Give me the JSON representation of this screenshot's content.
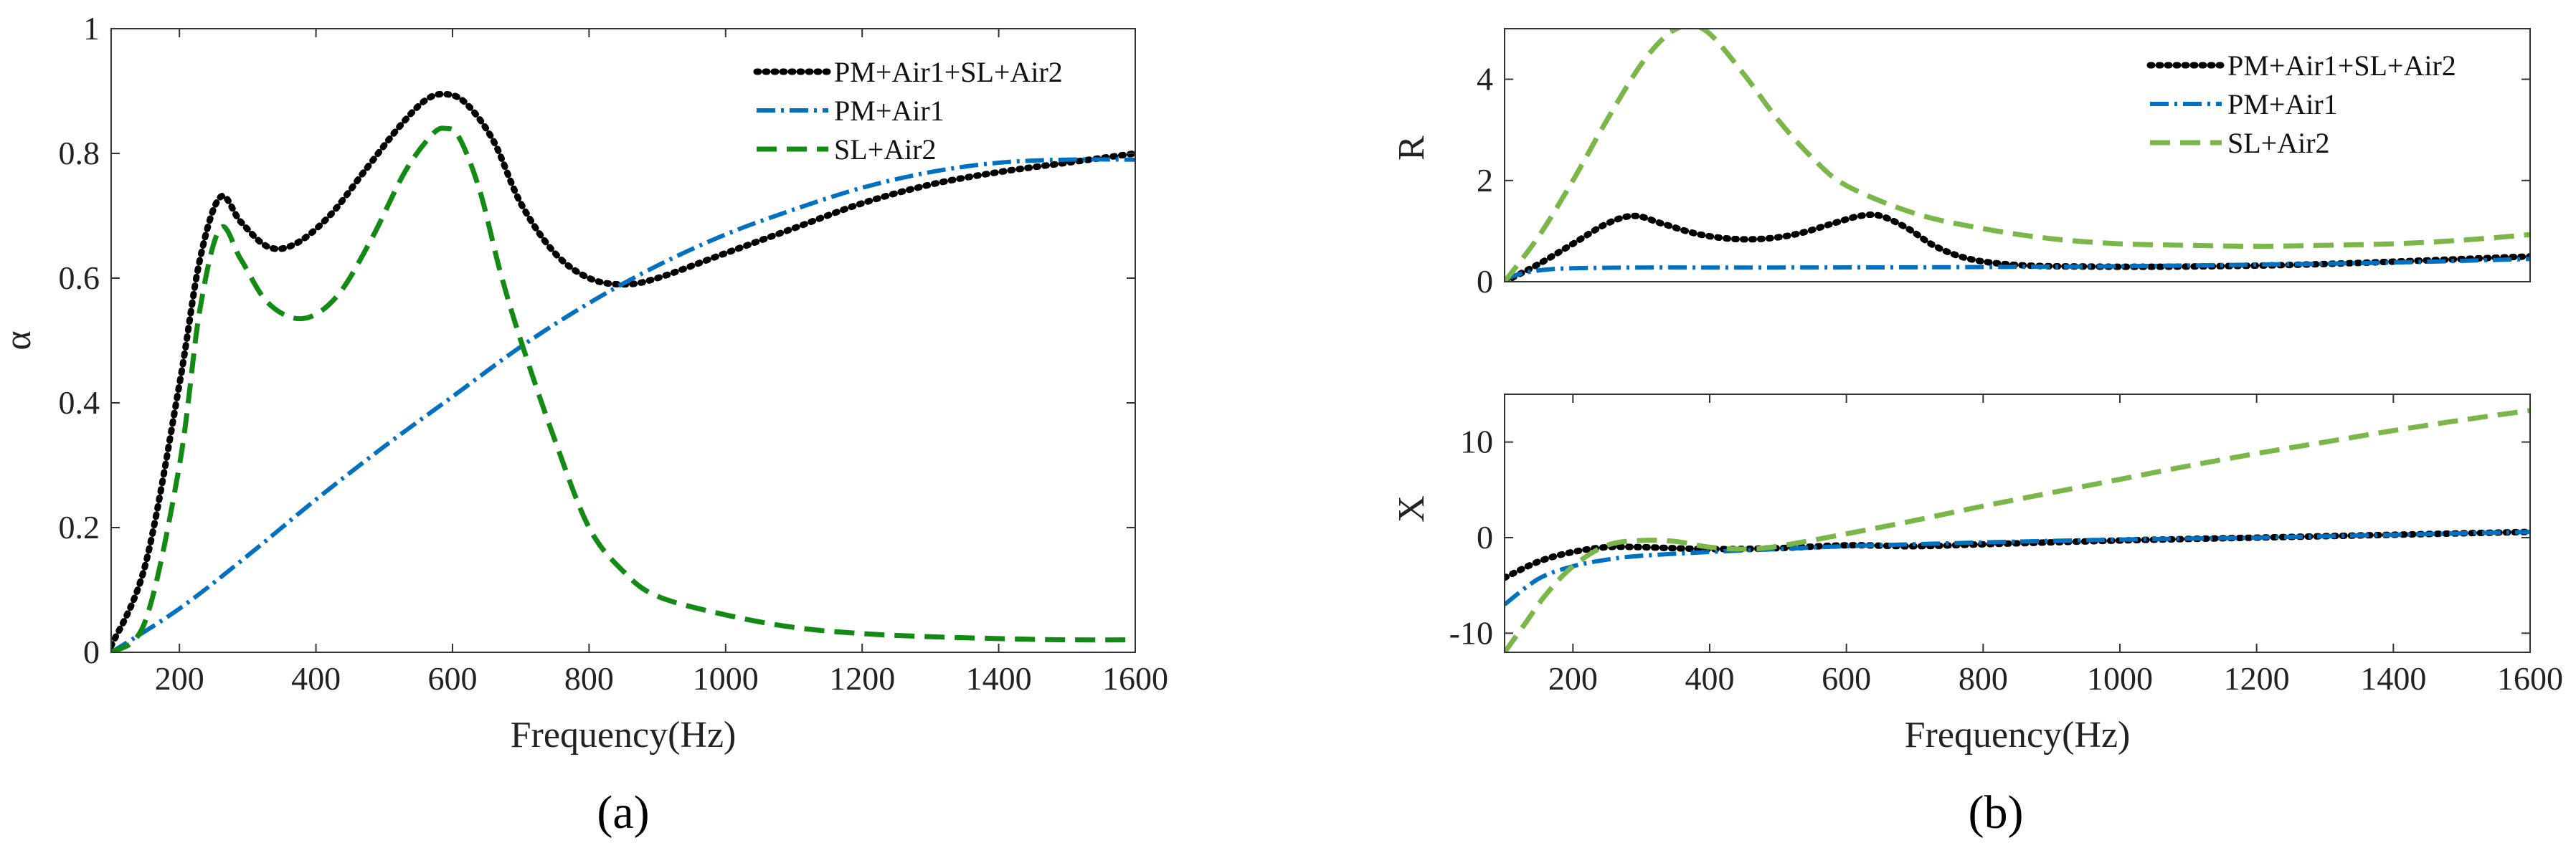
{
  "chart_data": [
    {
      "id": "a",
      "type": "line",
      "panel_label": "(a)",
      "xlabel": "Frequency(Hz)",
      "ylabel": "α",
      "xlim": [
        100,
        1600
      ],
      "ylim": [
        0,
        1
      ],
      "xticks": [
        200,
        400,
        600,
        800,
        1000,
        1200,
        1400,
        1600
      ],
      "yticks": [
        0,
        0.2,
        0.4,
        0.6,
        0.8,
        1
      ],
      "ytick_labels": [
        "0",
        "0.2",
        "0.4",
        "0.6",
        "0.8",
        "1"
      ],
      "legend_position": "top-right",
      "series": [
        {
          "name": "PM+Air1+SL+Air2",
          "color": "#000000",
          "style": "dotted",
          "x": [
            100,
            150,
            200,
            230,
            260,
            290,
            330,
            370,
            420,
            470,
            520,
            560,
            590,
            620,
            660,
            700,
            750,
            800,
            850,
            900,
            1000,
            1100,
            1200,
            1300,
            1400,
            1500,
            1600
          ],
          "y": [
            0.01,
            0.14,
            0.43,
            0.63,
            0.73,
            0.69,
            0.65,
            0.655,
            0.7,
            0.77,
            0.84,
            0.885,
            0.895,
            0.88,
            0.82,
            0.72,
            0.64,
            0.6,
            0.59,
            0.6,
            0.64,
            0.68,
            0.72,
            0.75,
            0.77,
            0.785,
            0.8
          ]
        },
        {
          "name": "PM+Air1",
          "color": "#0070C0",
          "style": "dashdot",
          "x": [
            100,
            200,
            300,
            400,
            500,
            600,
            700,
            800,
            900,
            1000,
            1100,
            1200,
            1300,
            1400,
            1500,
            1600
          ],
          "y": [
            0,
            0.07,
            0.155,
            0.245,
            0.33,
            0.41,
            0.49,
            0.56,
            0.62,
            0.67,
            0.71,
            0.745,
            0.77,
            0.785,
            0.79,
            0.79
          ]
        },
        {
          "name": "SL+Air2",
          "color": "#138A13",
          "style": "dashed",
          "x": [
            100,
            150,
            200,
            230,
            260,
            290,
            330,
            380,
            430,
            480,
            530,
            570,
            590,
            610,
            640,
            670,
            700,
            750,
            800,
            850,
            900,
            1000,
            1100,
            1200,
            1300,
            1400,
            1500,
            1600
          ],
          "y": [
            0,
            0.05,
            0.3,
            0.55,
            0.68,
            0.63,
            0.56,
            0.535,
            0.57,
            0.66,
            0.77,
            0.83,
            0.84,
            0.825,
            0.74,
            0.61,
            0.5,
            0.34,
            0.2,
            0.13,
            0.09,
            0.06,
            0.04,
            0.03,
            0.025,
            0.022,
            0.02,
            0.02
          ]
        }
      ]
    },
    {
      "id": "b_top",
      "type": "line",
      "panel_label": "(b)",
      "xlabel": "",
      "ylabel": "R",
      "xlim": [
        100,
        1600
      ],
      "ylim": [
        0,
        5
      ],
      "xticks": [],
      "yticks": [
        0,
        2,
        4
      ],
      "ytick_labels": [
        "0",
        "2",
        "4"
      ],
      "legend_position": "top-right",
      "series": [
        {
          "name": "PM+Air1+SL+Air2",
          "color": "#000000",
          "style": "dotted",
          "x": [
            100,
            150,
            200,
            250,
            290,
            330,
            380,
            430,
            480,
            530,
            580,
            620,
            650,
            690,
            730,
            780,
            850,
            950,
            1100,
            1300,
            1600
          ],
          "y": [
            0,
            0.35,
            0.75,
            1.15,
            1.3,
            1.15,
            0.95,
            0.85,
            0.85,
            0.95,
            1.15,
            1.3,
            1.3,
            1.05,
            0.7,
            0.45,
            0.33,
            0.3,
            0.3,
            0.35,
            0.5
          ]
        },
        {
          "name": "PM+Air1",
          "color": "#0070C0",
          "style": "dashdot",
          "x": [
            100,
            130,
            170,
            220,
            300,
            500,
            800,
            1100,
            1400,
            1600
          ],
          "y": [
            0.05,
            0.18,
            0.25,
            0.27,
            0.28,
            0.28,
            0.29,
            0.32,
            0.38,
            0.45
          ]
        },
        {
          "name": "SL+Air2",
          "color": "#7AB648",
          "style": "dashed",
          "x": [
            100,
            150,
            200,
            250,
            300,
            340,
            370,
            400,
            450,
            500,
            550,
            600,
            700,
            800,
            900,
            1000,
            1100,
            1200,
            1300,
            1400,
            1500,
            1600
          ],
          "y": [
            0,
            0.9,
            2.0,
            3.2,
            4.3,
            4.9,
            5.05,
            4.9,
            4.1,
            3.2,
            2.45,
            1.9,
            1.35,
            1.05,
            0.85,
            0.75,
            0.72,
            0.7,
            0.72,
            0.75,
            0.82,
            0.93
          ]
        }
      ]
    },
    {
      "id": "b_bottom",
      "type": "line",
      "xlabel": "Frequency(Hz)",
      "ylabel": "X",
      "xlim": [
        100,
        1600
      ],
      "ylim": [
        -12,
        15
      ],
      "xticks": [
        200,
        400,
        600,
        800,
        1000,
        1200,
        1400,
        1600
      ],
      "yticks": [
        -10,
        0,
        10
      ],
      "ytick_labels": [
        "-10",
        "0",
        "10"
      ],
      "series": [
        {
          "name": "PM+Air1+SL+Air2",
          "color": "#000000",
          "style": "dotted",
          "x": [
            100,
            150,
            200,
            250,
            300,
            400,
            500,
            600,
            700,
            800,
            1000,
            1200,
            1400,
            1600
          ],
          "y": [
            -4.2,
            -2.5,
            -1.5,
            -1.0,
            -1.0,
            -1.2,
            -1.1,
            -0.8,
            -0.9,
            -0.7,
            -0.3,
            0,
            0.3,
            0.6
          ]
        },
        {
          "name": "PM+Air1",
          "color": "#0070C0",
          "style": "dashdot",
          "x": [
            100,
            150,
            200,
            250,
            300,
            400,
            500,
            600,
            800,
            1000,
            1200,
            1400,
            1600
          ],
          "y": [
            -7,
            -4.3,
            -3.0,
            -2.3,
            -1.9,
            -1.5,
            -1.2,
            -0.9,
            -0.5,
            -0.2,
            0,
            0.3,
            0.6
          ]
        },
        {
          "name": "SL+Air2",
          "color": "#7AB648",
          "style": "dashed",
          "x": [
            100,
            130,
            160,
            200,
            250,
            300,
            350,
            400,
            450,
            500,
            600,
            700,
            800,
            900,
            1000,
            1100,
            1200,
            1300,
            1400,
            1500,
            1600
          ],
          "y": [
            -12,
            -9,
            -6,
            -3,
            -0.8,
            -0.3,
            -0.4,
            -1.0,
            -1.2,
            -0.9,
            0.4,
            1.8,
            3.3,
            4.7,
            6.1,
            7.5,
            8.8,
            10.0,
            11.2,
            12.3,
            13.3
          ]
        }
      ]
    }
  ]
}
